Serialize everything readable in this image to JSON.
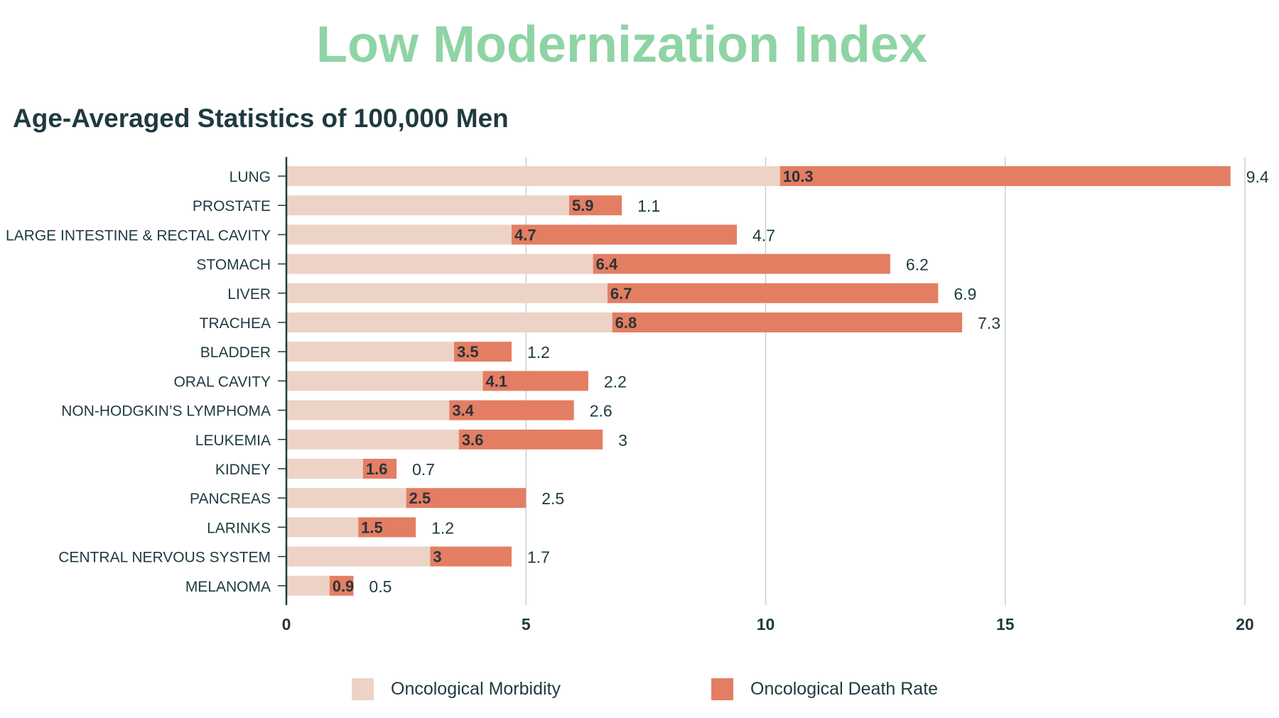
{
  "title": "Low Modernization Index",
  "subtitle": "Age-Averaged Statistics of 100,000 Men",
  "colors": {
    "title": "#8fd4a5",
    "text": "#1e3a40",
    "morbidity": "#ecd3c6",
    "death_rate": "#e37e63",
    "grid": "#cfcfcf",
    "axis": "#1e3a40"
  },
  "legend": {
    "morbidity": "Oncological Morbidity",
    "death_rate": "Oncological Death Rate"
  },
  "chart_data": {
    "type": "bar",
    "orientation": "horizontal",
    "stacked": true,
    "categories": [
      "LUNG",
      "PROSTATE",
      "LARGE INTESTINE & RECTAL CAVITY",
      "STOMACH",
      "LIVER",
      "TRACHEA",
      "BLADDER",
      "ORAL CAVITY",
      "NON-HODGKIN’S LYMPHOMA",
      "LEUKEMIA",
      "KIDNEY",
      "PANCREAS",
      "LARINKS",
      "CENTRAL NERVOUS SYSTEM",
      "MELANOMA"
    ],
    "series": [
      {
        "name": "Oncological Morbidity",
        "values": [
          10.3,
          5.9,
          4.7,
          6.4,
          6.7,
          6.8,
          3.5,
          4.1,
          3.4,
          3.6,
          1.6,
          2.5,
          1.5,
          3,
          0.9
        ],
        "labels": [
          "10.3",
          "5.9",
          "4.7",
          "6.4",
          "6.7",
          "6.8",
          "3.5",
          "4.1",
          "3.4",
          "3.6",
          "1.6",
          "2.5",
          "1.5",
          "3",
          "0.9"
        ]
      },
      {
        "name": "Oncological Death Rate",
        "values": [
          9.4,
          1.1,
          4.7,
          6.2,
          6.9,
          7.3,
          1.2,
          2.2,
          2.6,
          3,
          0.7,
          2.5,
          1.2,
          1.7,
          0.5
        ],
        "labels": [
          "9.4",
          "1.1",
          "4.7",
          "6.2",
          "6.9",
          "7.3",
          "1.2",
          "2.2",
          "2.6",
          "3",
          "0.7",
          "2.5",
          "1.2",
          "1.7",
          "0.5"
        ]
      }
    ],
    "xlim": [
      0,
      20
    ],
    "xticks": [
      "0",
      "5",
      "10",
      "15",
      "20"
    ],
    "grid": true,
    "legend_position": "bottom"
  }
}
